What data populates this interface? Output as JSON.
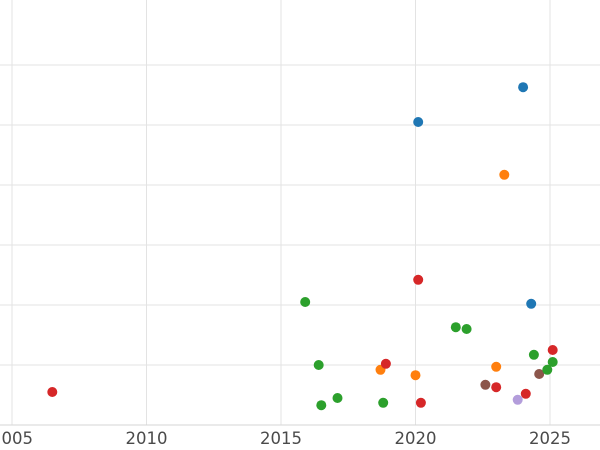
{
  "chart_data": {
    "type": "scatter",
    "title": "",
    "xlabel": "",
    "ylabel": "",
    "x_ticks": [
      2005,
      2010,
      2015,
      2020,
      2025
    ],
    "xlim": [
      2004.5,
      2026.9
    ],
    "ylim": [
      0,
      7.1
    ],
    "grid": true,
    "legend": "none",
    "palette": {
      "blue": "#1f77b4",
      "orange": "#ff7f0e",
      "green": "#2ca02c",
      "red": "#d62728",
      "purple": "#b39ddb",
      "brown": "#8c564b"
    },
    "points": [
      {
        "x": 2006.5,
        "y": 0.55,
        "series": "red"
      },
      {
        "x": 2015.9,
        "y": 2.05,
        "series": "green"
      },
      {
        "x": 2016.4,
        "y": 1.0,
        "series": "green"
      },
      {
        "x": 2016.5,
        "y": 0.33,
        "series": "green"
      },
      {
        "x": 2017.1,
        "y": 0.45,
        "series": "green"
      },
      {
        "x": 2018.8,
        "y": 0.37,
        "series": "green"
      },
      {
        "x": 2018.7,
        "y": 0.92,
        "series": "orange"
      },
      {
        "x": 2018.9,
        "y": 1.02,
        "series": "red"
      },
      {
        "x": 2020.0,
        "y": 0.83,
        "series": "orange"
      },
      {
        "x": 2020.1,
        "y": 2.42,
        "series": "red"
      },
      {
        "x": 2020.1,
        "y": 5.05,
        "series": "blue"
      },
      {
        "x": 2020.2,
        "y": 0.37,
        "series": "red"
      },
      {
        "x": 2021.5,
        "y": 1.63,
        "series": "green"
      },
      {
        "x": 2021.9,
        "y": 1.6,
        "series": "green"
      },
      {
        "x": 2022.6,
        "y": 0.67,
        "series": "brown"
      },
      {
        "x": 2023.0,
        "y": 0.63,
        "series": "red"
      },
      {
        "x": 2023.0,
        "y": 0.97,
        "series": "orange"
      },
      {
        "x": 2023.3,
        "y": 4.17,
        "series": "orange"
      },
      {
        "x": 2023.8,
        "y": 0.42,
        "series": "purple"
      },
      {
        "x": 2024.0,
        "y": 5.63,
        "series": "blue"
      },
      {
        "x": 2024.1,
        "y": 0.52,
        "series": "red"
      },
      {
        "x": 2024.3,
        "y": 2.02,
        "series": "blue"
      },
      {
        "x": 2024.4,
        "y": 1.17,
        "series": "green"
      },
      {
        "x": 2024.6,
        "y": 0.85,
        "series": "brown"
      },
      {
        "x": 2024.9,
        "y": 0.92,
        "series": "green"
      },
      {
        "x": 2025.1,
        "y": 1.25,
        "series": "red"
      },
      {
        "x": 2025.1,
        "y": 1.05,
        "series": "green"
      }
    ]
  }
}
